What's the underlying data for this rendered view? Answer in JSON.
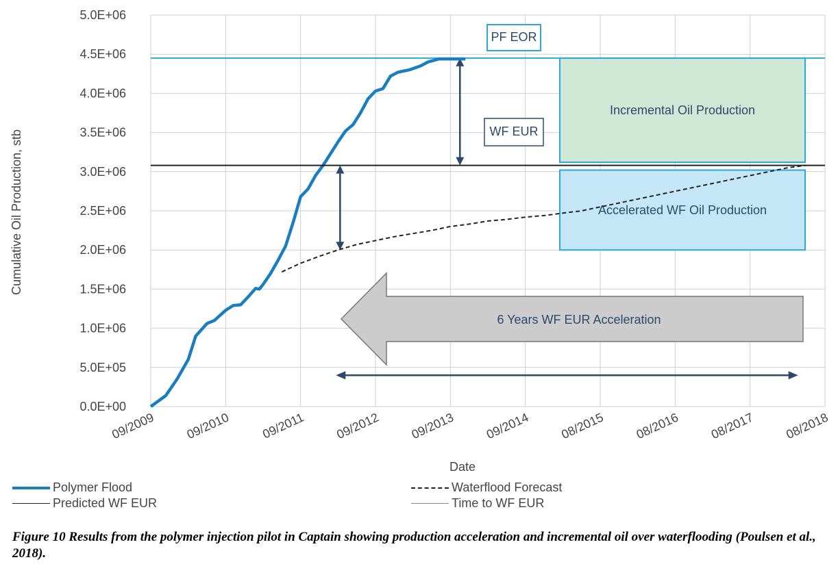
{
  "chart_data": {
    "type": "line",
    "xlabel": "Date",
    "ylabel": "Cumulative Oil Production, stb",
    "ylim": [
      0,
      5000000
    ],
    "y_ticks": [
      0,
      500000,
      1000000,
      1500000,
      2000000,
      2500000,
      3000000,
      3500000,
      4000000,
      4500000,
      5000000
    ],
    "y_tick_labels": [
      "0.0E+00",
      "5.0E+05",
      "1.0E+06",
      "1.5E+06",
      "2.0E+06",
      "2.5E+06",
      "3.0E+06",
      "3.5E+06",
      "4.0E+06",
      "4.5E+06",
      "5.0E+06"
    ],
    "x_tick_labels": [
      "09/2009",
      "09/2010",
      "09/2011",
      "09/2012",
      "09/2013",
      "09/2014",
      "08/2015",
      "08/2016",
      "08/2017",
      "08/2018"
    ],
    "x_axis_note": "x values are years elapsed from the first tick (09/2009); ticks are one year apart",
    "xlim": [
      0,
      9
    ],
    "grid": true,
    "legend_position": "bottom",
    "series": [
      {
        "name": "Polymer Flood",
        "style": "solid-thick",
        "color": "#1a7dc0",
        "x": [
          0,
          0.2,
          0.35,
          0.5,
          0.6,
          0.75,
          0.85,
          1.0,
          1.1,
          1.2,
          1.3,
          1.4,
          1.45,
          1.5,
          1.6,
          1.7,
          1.8,
          1.9,
          2.0,
          2.1,
          2.2,
          2.3,
          2.4,
          2.5,
          2.6,
          2.7,
          2.8,
          2.9,
          3.0,
          3.1,
          3.2,
          3.3,
          3.45,
          3.6,
          3.7,
          3.85,
          4.0,
          4.1,
          4.2
        ],
        "y": [
          0,
          140000,
          350000,
          600000,
          900000,
          1060000,
          1100000,
          1230000,
          1290000,
          1300000,
          1400000,
          1510000,
          1500000,
          1560000,
          1700000,
          1870000,
          2050000,
          2350000,
          2680000,
          2780000,
          2950000,
          3080000,
          3230000,
          3380000,
          3520000,
          3600000,
          3750000,
          3930000,
          4030000,
          4060000,
          4220000,
          4270000,
          4300000,
          4350000,
          4400000,
          4440000,
          4440000,
          4440000,
          4440000
        ]
      },
      {
        "name": "Waterflood Forecast",
        "style": "dashed",
        "color": "#222222",
        "x": [
          1.75,
          2.0,
          2.25,
          2.5,
          2.75,
          3.0,
          3.25,
          3.5,
          3.75,
          4.0,
          4.25,
          4.5,
          4.75,
          5.0,
          5.25,
          5.5,
          5.75,
          6.0,
          6.25,
          6.5,
          6.75,
          7.0,
          7.25,
          7.5,
          7.75,
          8.0,
          8.25,
          8.5,
          8.75
        ],
        "y": [
          1720000,
          1830000,
          1920000,
          2000000,
          2070000,
          2120000,
          2170000,
          2210000,
          2250000,
          2300000,
          2330000,
          2370000,
          2390000,
          2420000,
          2440000,
          2470000,
          2500000,
          2550000,
          2600000,
          2650000,
          2700000,
          2750000,
          2800000,
          2850000,
          2900000,
          2950000,
          3000000,
          3050000,
          3080000
        ]
      },
      {
        "name": "Predicted WF EUR",
        "style": "solid-thin",
        "color": "#222222",
        "x": [
          0,
          9
        ],
        "y": [
          3080000,
          3080000
        ]
      },
      {
        "name": "Time to WF EUR",
        "style": "solid-thin",
        "color": "#888888",
        "x": [],
        "y": []
      }
    ],
    "reference_lines": [
      {
        "label": "PF EOR",
        "y": 4450000,
        "color": "#2aa8dc"
      }
    ],
    "annotations": [
      {
        "text": "PF EOR",
        "box_color": "#2aa8dc"
      },
      {
        "text": "WF EUR",
        "box_color": "#2a4a6b"
      },
      {
        "text": "Incremental Oil Production",
        "fill": "#cfe8d6",
        "border": "#2aa8dc",
        "y_range": [
          3120000,
          4450000
        ]
      },
      {
        "text": "Accelerated WF Oil Production",
        "fill": "#c4e6f7",
        "border": "#2aa8dc",
        "y_range": [
          2000000,
          3020000
        ]
      },
      {
        "text": "6 Years WF EUR Acceleration",
        "type": "big-left-arrow",
        "fill": "#cccccc"
      }
    ],
    "arrows": [
      {
        "kind": "double-vertical",
        "x": 4.1,
        "y_from": 3080000,
        "y_to": 4450000
      },
      {
        "kind": "double-vertical",
        "x": 2.5,
        "y_from": 2000000,
        "y_to": 3080000
      },
      {
        "kind": "double-horizontal",
        "x_from": 2.6,
        "x_to": 8.75,
        "y": 400000
      }
    ]
  },
  "legend": {
    "polymer_flood": "Polymer Flood",
    "waterflood_forecast": "Waterflood Forecast",
    "predicted_wf_eur": "Predicted WF EUR",
    "time_to_wf_eur": "Time to WF EUR"
  },
  "caption": "Figure 10 Results from the polymer injection pilot in Captain showing production acceleration and incremental oil over waterflooding (Poulsen et al., 2018).",
  "colors": {
    "polymer": "#1a7dc0",
    "accent_cyan": "#2aa8dc",
    "navy": "#2a4a6b",
    "grid": "#cfcfcf",
    "green_box": "#cfe8d6",
    "blue_box": "#c4e6f7",
    "arrow_gray": "#cccccc"
  }
}
